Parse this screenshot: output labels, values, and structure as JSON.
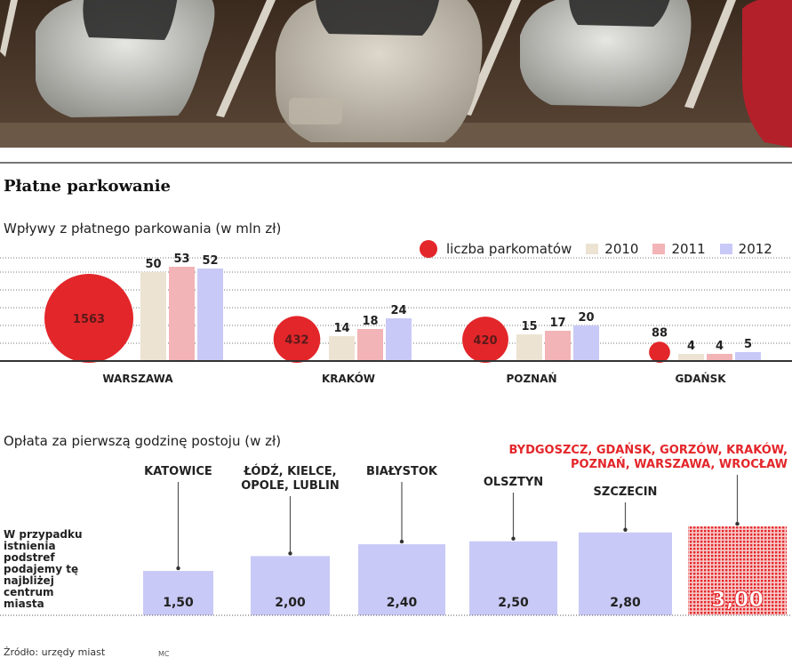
{
  "page": {
    "title": "Płatne parkowanie",
    "photo_alt": "parked-cars-photo"
  },
  "chart_data": [
    {
      "type": "bar",
      "title": "Wpływy z płatnego parkowania (w mln zł)",
      "categories": [
        "WARSZAWA",
        "KRAKÓW",
        "POZNAŃ",
        "GDAŃSK"
      ],
      "series": [
        {
          "name": "2010",
          "values": [
            50,
            14,
            15,
            4
          ],
          "color": "#ece3d3"
        },
        {
          "name": "2011",
          "values": [
            53,
            18,
            17,
            4
          ],
          "color": "#f2b4b6"
        },
        {
          "name": "2012",
          "values": [
            52,
            24,
            20,
            5
          ],
          "color": "#c9c9f7"
        }
      ],
      "bubbles": {
        "name": "liczba parkomatów",
        "values": [
          1563,
          432,
          420,
          88
        ],
        "color": "#e3262a"
      },
      "legend_position": "top-right",
      "grid": true
    },
    {
      "type": "bar",
      "title": "Opłata za pierwszą godzinę postoju (w zł)",
      "categories": [
        "KATOWICE",
        "ŁÓDŹ, KIELCE, OPOLE, LUBLIN",
        "BIAŁYSTOK",
        "OLSZTYN",
        "SZCZECIN",
        "BYDGOSZCZ, GDAŃSK, GORZÓW, KRAKÓW, POZNAŃ, WARSZAWA, WROCŁAW"
      ],
      "category_lines": [
        [
          "KATOWICE"
        ],
        [
          "ŁÓDŹ, KIELCE,",
          "OPOLE, LUBLIN"
        ],
        [
          "BIAŁYSTOK"
        ],
        [
          "OLSZTYN"
        ],
        [
          "SZCZECIN"
        ],
        [
          "BYDGOSZCZ, GDAŃSK, GORZÓW, KRAKÓW,",
          "POZNAŃ, WARSZAWA, WROCŁAW"
        ]
      ],
      "values": [
        1.5,
        2.0,
        2.4,
        2.5,
        2.8,
        3.0
      ],
      "value_labels": [
        "1,50",
        "2,00",
        "2,40",
        "2,50",
        "2,80",
        "3,00"
      ],
      "highlight_index": 5,
      "colors": {
        "bar": "#c9c9f7",
        "highlight": "#e3262a",
        "highlight_label": "#e3262a"
      },
      "note": "W przypadku istnienia podstref podajemy tę najbliżej centrum miasta"
    }
  ],
  "source": "Źródło: urzędy miast",
  "credit": "MC"
}
